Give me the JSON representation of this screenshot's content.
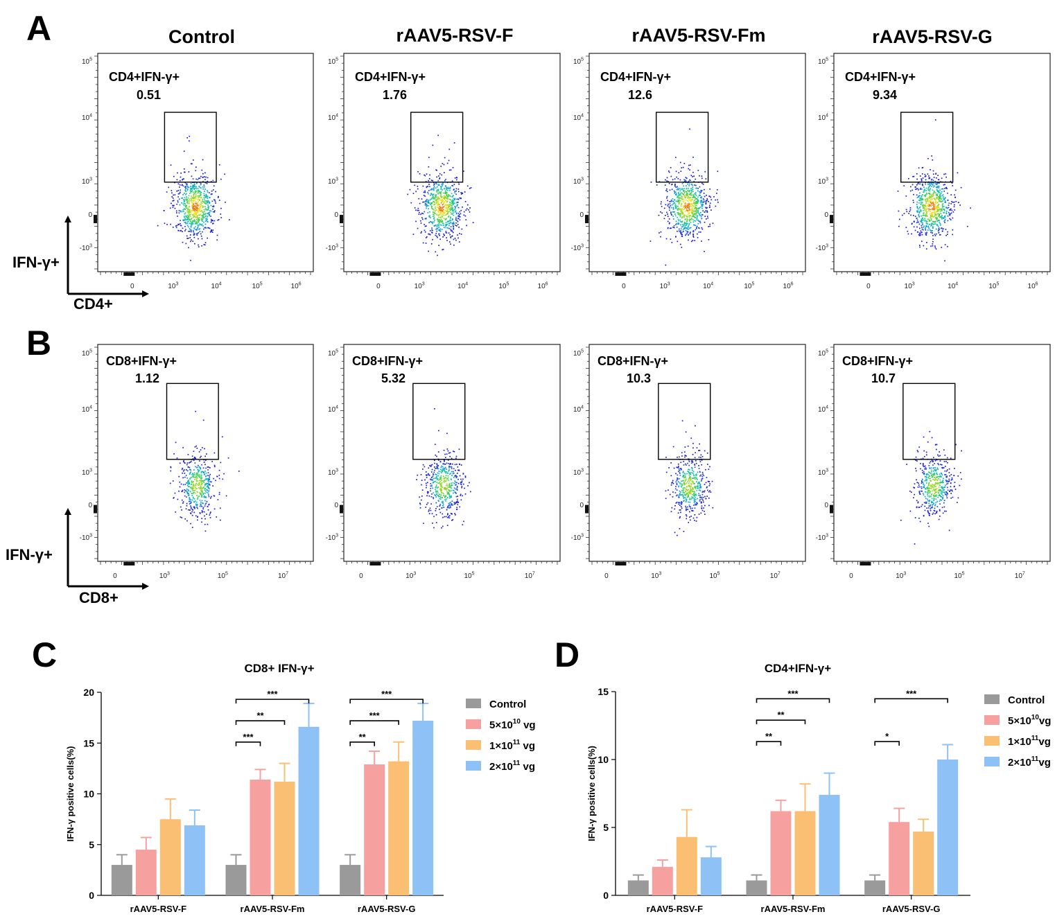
{
  "panel_letters": [
    "A",
    "B",
    "C",
    "D"
  ],
  "flow": {
    "columns": [
      "Control",
      "rAAV5-RSV-F",
      "rAAV5-RSV-Fm",
      "rAAV5-RSV-G"
    ],
    "rows": [
      {
        "letter": "A",
        "ylabel": "IFN-γ+",
        "xlabel": "CD4+",
        "gate_label": "CD4+IFN-γ+",
        "gate_values": [
          "0.51",
          "1.76",
          "12.6",
          "9.34"
        ],
        "x_ticks": [
          "0",
          "10",
          "10",
          "10",
          "10"
        ],
        "x_exponents": [
          "",
          "3",
          "4",
          "5",
          "6"
        ],
        "y_ticks": [
          "10",
          "10",
          "10",
          "0",
          "-10"
        ],
        "y_exponents": [
          "5",
          "4",
          "3",
          "",
          "3"
        ]
      },
      {
        "letter": "B",
        "ylabel": "IFN-γ+",
        "xlabel": "CD8+",
        "gate_label": "CD8+IFN-γ+",
        "gate_values": [
          "1.12",
          "5.32",
          "10.3",
          "10.7"
        ],
        "x_ticks": [
          "0",
          "10",
          "10",
          "10"
        ],
        "x_exponents": [
          "",
          "3",
          "5",
          "7"
        ],
        "y_ticks": [
          "10",
          "10",
          "10",
          "0",
          "-10"
        ],
        "y_exponents": [
          "5",
          "4",
          "3",
          "",
          "3"
        ]
      }
    ]
  },
  "chart_data": [
    {
      "type": "bar",
      "panel": "C",
      "title": "CD8+ IFN-γ+",
      "ylabel": "IFN-γ positive cells(%)",
      "xlabel": "",
      "ylim": [
        0,
        20
      ],
      "yticks": [
        0,
        5,
        10,
        15,
        20
      ],
      "categories": [
        "rAAV5-RSV-F",
        "rAAV5-RSV-Fm",
        "rAAV5-RSV-G"
      ],
      "series": [
        {
          "name": "Control",
          "name_base": "Control",
          "name_exp": "",
          "name_unit": "",
          "color": "#9a9a9a",
          "values": [
            3.0,
            3.0,
            3.0
          ],
          "errors": [
            1.0,
            1.0,
            1.0
          ]
        },
        {
          "name": "5×10^10 vg",
          "name_base": "5×10",
          "name_exp": "10",
          "name_unit": " vg",
          "color": "#f7a0a0",
          "values": [
            4.5,
            11.4,
            12.9
          ],
          "errors": [
            1.2,
            1.0,
            1.3
          ]
        },
        {
          "name": "1×10^11 vg",
          "name_base": "1×10",
          "name_exp": "11",
          "name_unit": " vg",
          "color": "#fbbf74",
          "values": [
            7.5,
            11.2,
            13.2
          ],
          "errors": [
            2.0,
            1.8,
            1.9
          ]
        },
        {
          "name": "2×10^11 vg",
          "name_base": "2×10",
          "name_exp": "11",
          "name_unit": " vg",
          "color": "#8ec1f5",
          "values": [
            6.9,
            16.6,
            17.2
          ],
          "errors": [
            1.5,
            2.3,
            1.7
          ]
        }
      ],
      "significance": [
        {
          "category": 1,
          "from": 0,
          "to": 1,
          "label": "***"
        },
        {
          "category": 1,
          "from": 0,
          "to": 2,
          "label": "**"
        },
        {
          "category": 1,
          "from": 0,
          "to": 3,
          "label": "***"
        },
        {
          "category": 2,
          "from": 0,
          "to": 1,
          "label": "**"
        },
        {
          "category": 2,
          "from": 0,
          "to": 2,
          "label": "***"
        },
        {
          "category": 2,
          "from": 0,
          "to": 3,
          "label": "***"
        }
      ]
    },
    {
      "type": "bar",
      "panel": "D",
      "title": "CD4+IFN-γ+",
      "ylabel": "IFN-γ positive cells(%)",
      "xlabel": "",
      "ylim": [
        0,
        15
      ],
      "yticks": [
        0,
        5,
        10,
        15
      ],
      "categories": [
        "rAAV5-RSV-F",
        "rAAV5-RSV-Fm",
        "rAAV5-RSV-G"
      ],
      "series": [
        {
          "name": "Control",
          "name_base": "Control",
          "name_exp": "",
          "name_unit": "",
          "color": "#9a9a9a",
          "values": [
            1.1,
            1.1,
            1.1
          ],
          "errors": [
            0.4,
            0.4,
            0.4
          ]
        },
        {
          "name": "5×10^10vg",
          "name_base": "5×10",
          "name_exp": "10",
          "name_unit": "vg",
          "color": "#f7a0a0",
          "values": [
            2.1,
            6.2,
            5.4
          ],
          "errors": [
            0.5,
            0.8,
            1.0
          ]
        },
        {
          "name": "1×10^11vg",
          "name_base": "1×10",
          "name_exp": "11",
          "name_unit": "vg",
          "color": "#fbbf74",
          "values": [
            4.3,
            6.2,
            4.7
          ],
          "errors": [
            2.0,
            2.0,
            0.9
          ]
        },
        {
          "name": "2×10^11vg",
          "name_base": "2×10",
          "name_exp": "11",
          "name_unit": "vg",
          "color": "#8ec1f5",
          "values": [
            2.8,
            7.4,
            10.0
          ],
          "errors": [
            0.8,
            1.6,
            1.1
          ]
        }
      ],
      "significance": [
        {
          "category": 1,
          "from": 0,
          "to": 1,
          "label": "**"
        },
        {
          "category": 1,
          "from": 0,
          "to": 2,
          "label": "**"
        },
        {
          "category": 1,
          "from": 0,
          "to": 3,
          "label": "***"
        },
        {
          "category": 2,
          "from": 0,
          "to": 1,
          "label": "*"
        },
        {
          "category": 2,
          "from": 0,
          "to": 3,
          "label": "***"
        }
      ]
    }
  ]
}
